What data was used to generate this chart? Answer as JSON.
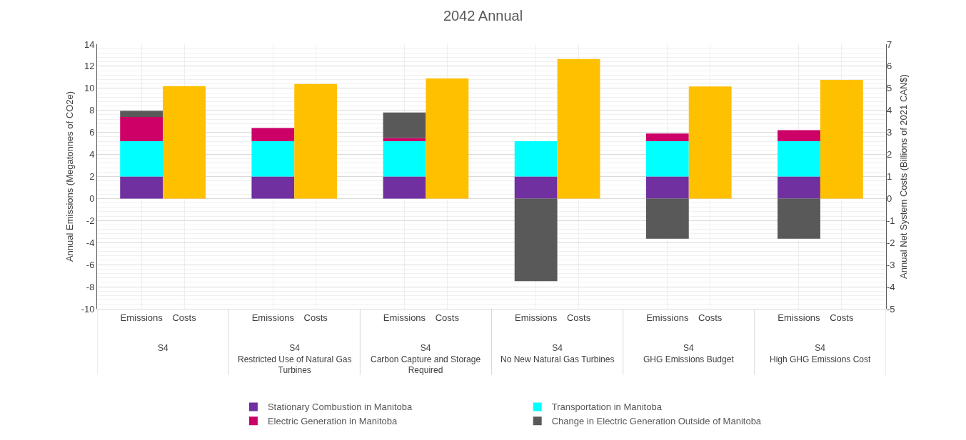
{
  "chart_data": {
    "type": "bar",
    "title": "2042 Annual",
    "ylabel": "Annual Emissions (Megatonnes of CO2e)",
    "y2label": "Annual Net System Costs (Billions of 2021 CAN$)",
    "categories": [
      "Emissions",
      "Costs",
      "Emissions",
      "Costs",
      "Emissions",
      "Costs",
      "Emissions",
      "Costs",
      "Emissions",
      "Costs",
      "Emissions",
      "Costs"
    ],
    "annotations": [
      "S4",
      "S4\nRestricted Use of Natural Gas Turbines",
      "S4\nCarbon Capture and Storage Required",
      "S4\nNo New Natural Gas Turbines",
      "S4\nGHG Emissions Budget",
      "S4\nHigh GHG Emissions Cost"
    ],
    "stacked": true,
    "series": [
      {
        "name": "Stationary Combustion in Manitoba",
        "color": "#7030a0",
        "values": [
          2,
          null,
          2,
          null,
          2,
          null,
          2,
          null,
          2,
          null,
          2,
          null
        ]
      },
      {
        "name": "Transportation in Manitoba",
        "color": "#00ffff",
        "values": [
          3.2,
          null,
          3.2,
          null,
          3.2,
          null,
          3.2,
          null,
          3.2,
          null,
          3.2,
          null
        ]
      },
      {
        "name": "Electric Generation in Manitoba",
        "color": "#cc0066",
        "values": [
          2.2,
          null,
          1.2,
          null,
          0.3,
          null,
          0,
          null,
          0.7,
          null,
          1.0,
          null
        ]
      },
      {
        "name": "Change in Electric Generation Outside of Manitoba",
        "color": "#595959",
        "values": [
          0.55,
          null,
          0,
          null,
          2.3,
          null,
          -7.5,
          null,
          -3.65,
          null,
          -3.65,
          null
        ]
      },
      {
        "color": "#ffc000",
        "axis": "y2",
        "values": [
          null,
          5.1,
          null,
          5.2,
          null,
          5.45,
          null,
          6.33,
          null,
          5.08,
          null,
          5.38
        ]
      }
    ],
    "ylim": [
      -10,
      14
    ],
    "yticks": [
      -10,
      -8,
      -6,
      -4,
      -2,
      0,
      2,
      4,
      6,
      8,
      10,
      12,
      14
    ],
    "y2lim": [
      -5,
      7
    ],
    "y2ticks": [
      -5,
      -4,
      -3,
      -2,
      -1,
      0,
      1,
      2,
      3,
      4,
      5,
      6,
      7
    ],
    "grid": true,
    "legend": "bottom"
  }
}
